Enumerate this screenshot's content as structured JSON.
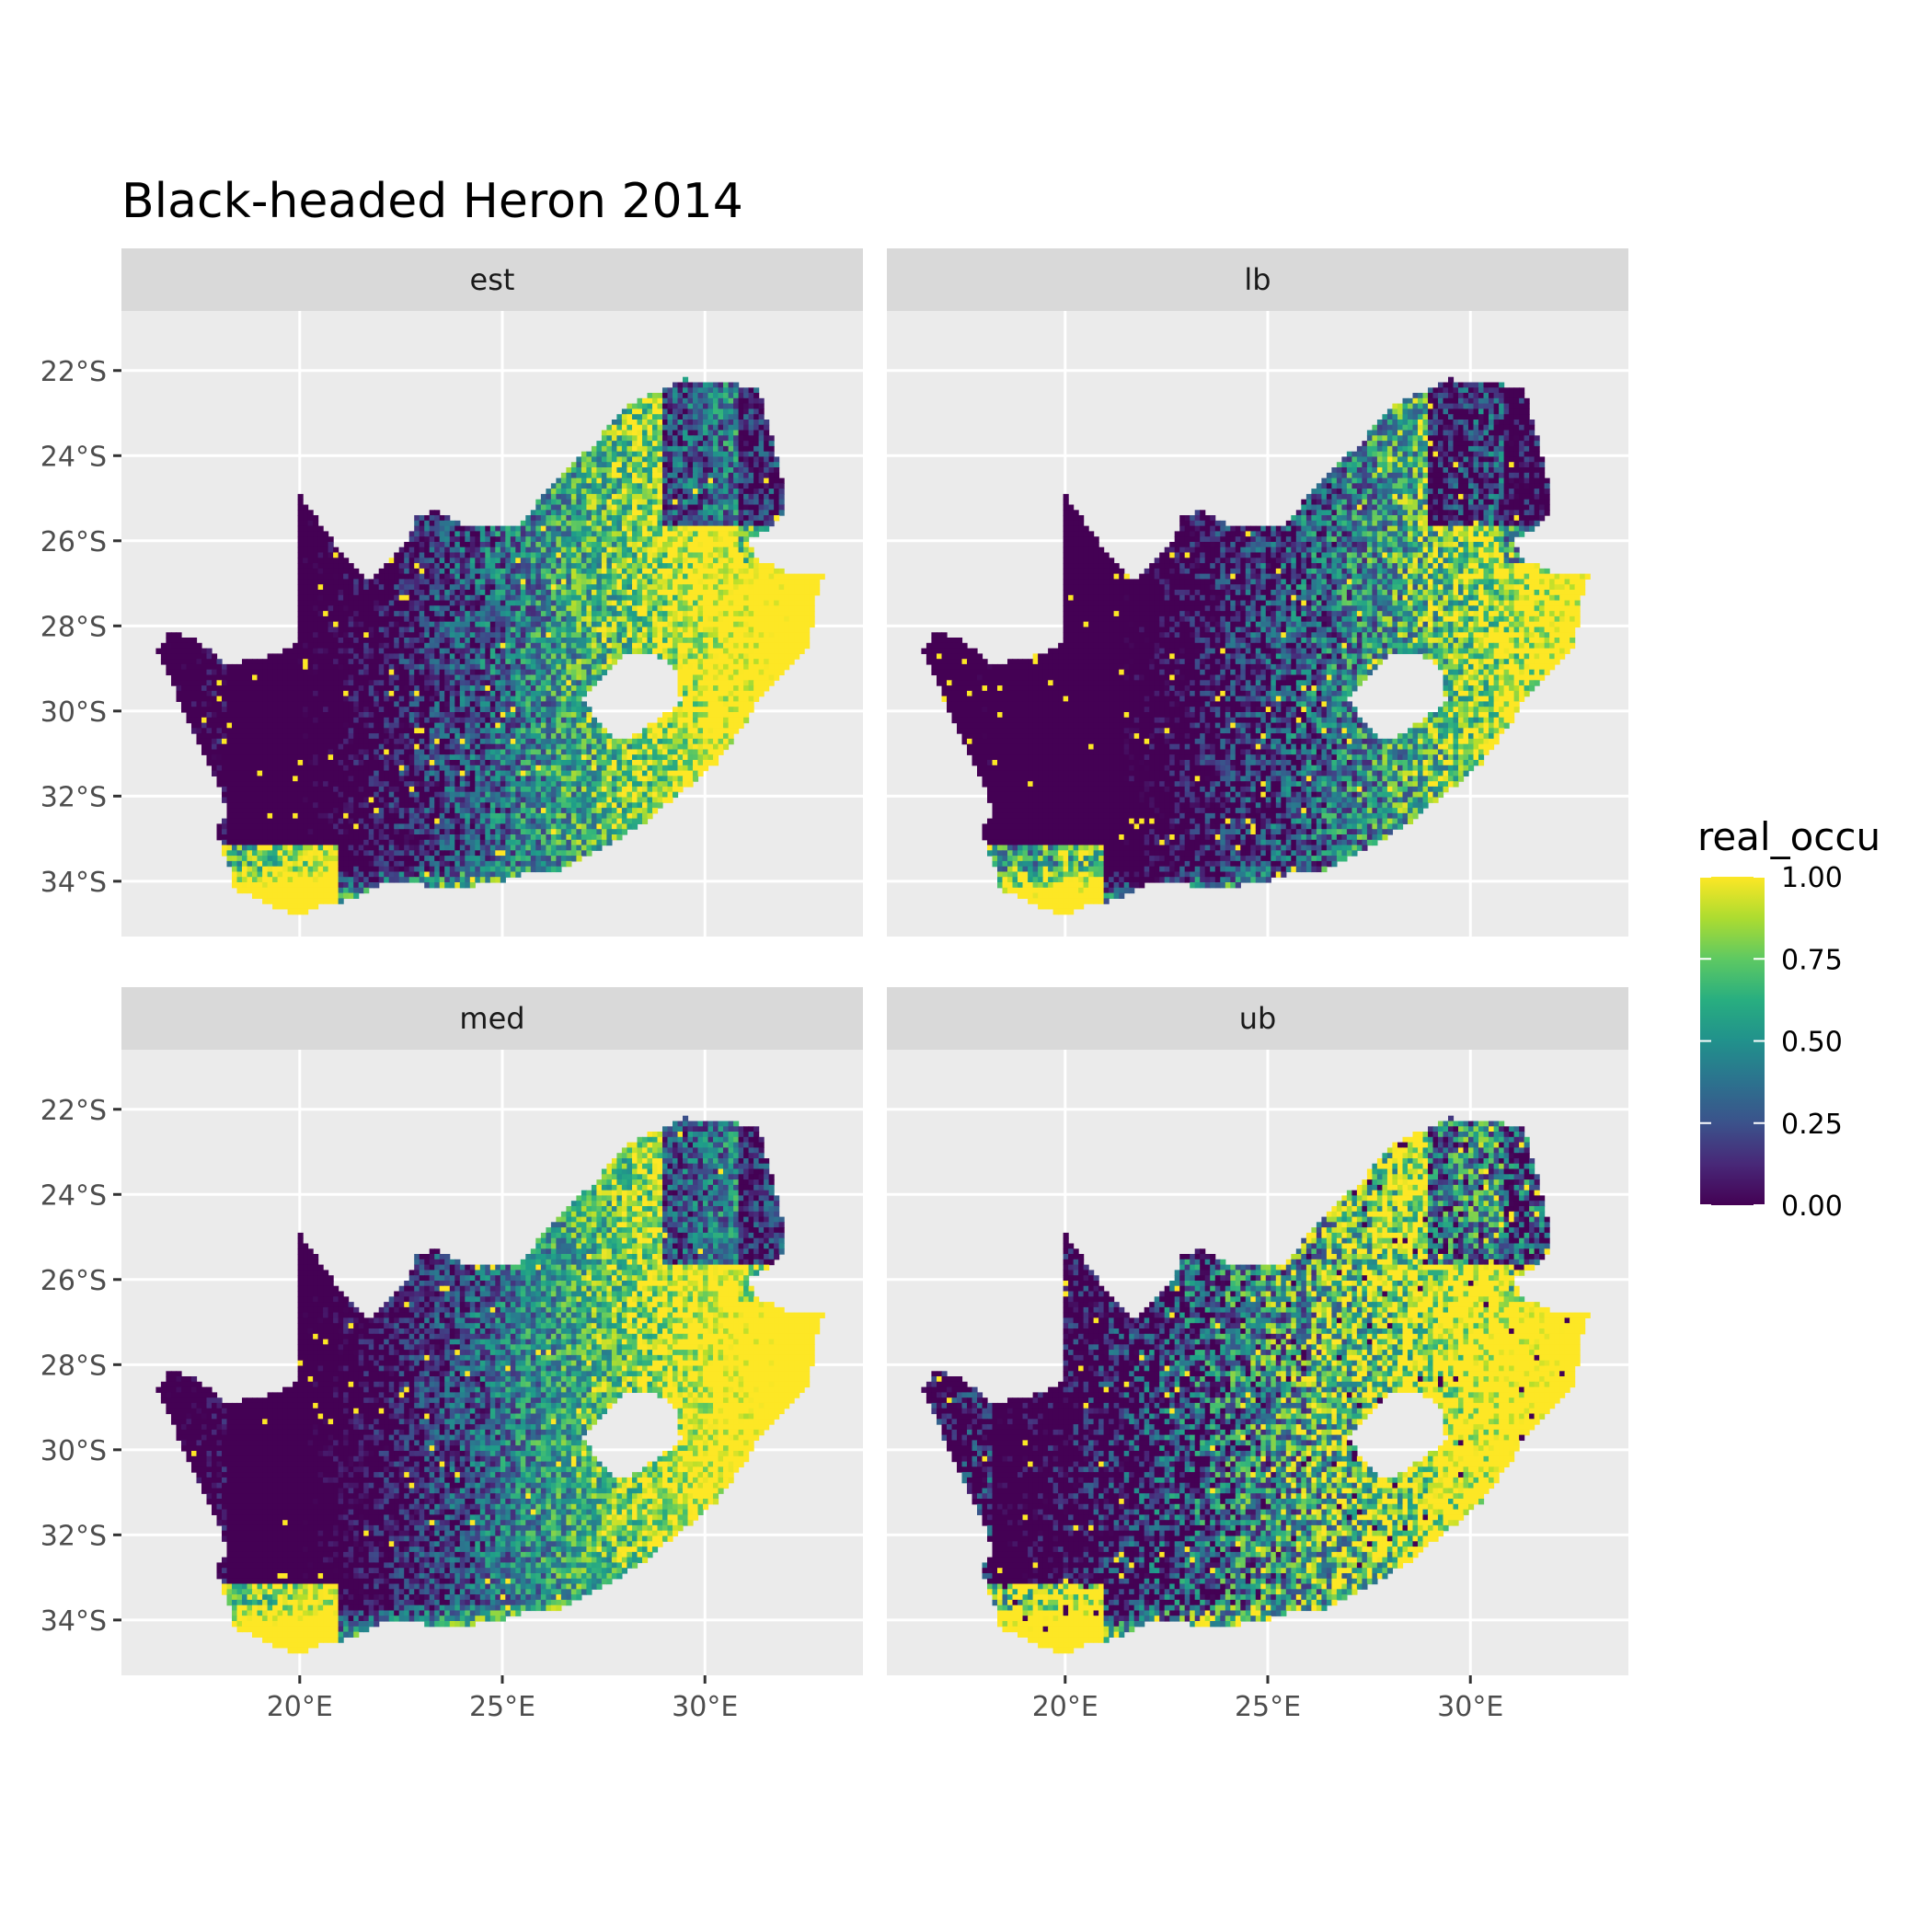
{
  "title": "Black-headed Heron 2014",
  "facets": [
    {
      "label": "est",
      "variant": 0
    },
    {
      "label": "lb",
      "variant": 1
    },
    {
      "label": "med",
      "variant": 2
    },
    {
      "label": "ub",
      "variant": 3
    }
  ],
  "axes": {
    "x_ticks": [
      "20°E",
      "25°E",
      "30°E"
    ],
    "x_tick_values": [
      20,
      25,
      30
    ],
    "y_ticks": [
      "22°S",
      "24°S",
      "26°S",
      "28°S",
      "30°S",
      "32°S",
      "34°S"
    ],
    "y_tick_values": [
      -22,
      -24,
      -26,
      -28,
      -30,
      -32,
      -34
    ],
    "x_range": [
      15.6,
      33.9
    ],
    "y_range": [
      -35.3,
      -20.6
    ]
  },
  "legend": {
    "title": "real_occu",
    "labels": [
      "1.00",
      "0.75",
      "0.50",
      "0.25",
      "0.00"
    ],
    "values": [
      1.0,
      0.75,
      0.5,
      0.25,
      0.0
    ],
    "colormap": "viridis",
    "colors": [
      "#fde725",
      "#5ec962",
      "#21918c",
      "#3b528b",
      "#440154"
    ]
  },
  "colors": {
    "panel_background": "#ebebeb",
    "grid": "#ffffff",
    "strip_background": "#d9d9d9",
    "lesotho_hole": "#ffffff"
  }
}
